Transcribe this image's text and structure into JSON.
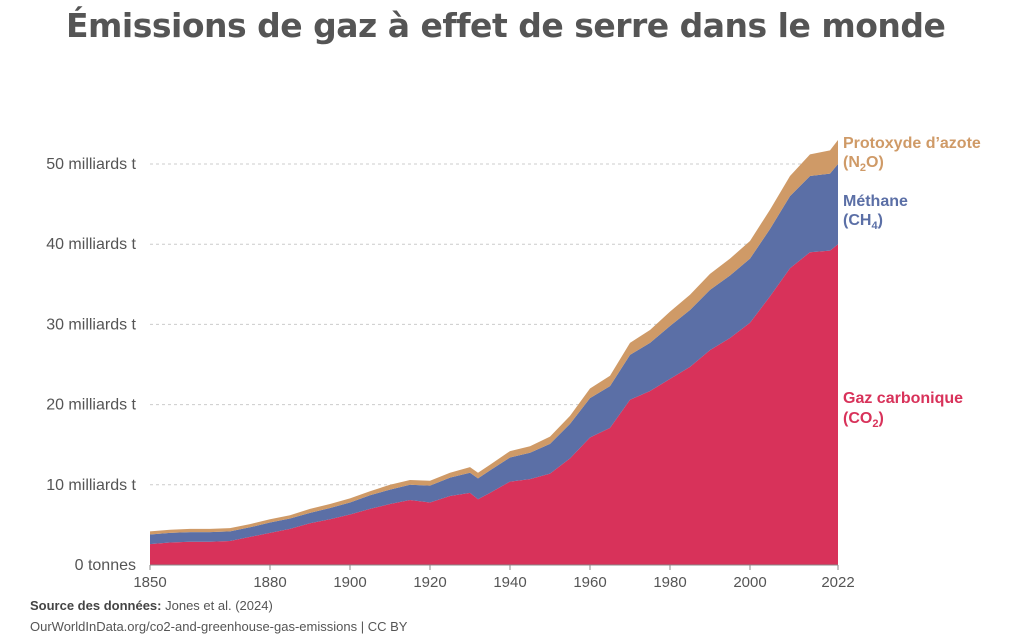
{
  "title": "Émissions de gaz à effet de serre dans le monde",
  "footer": {
    "source_label": "Source des données:",
    "source_value": "Jones et al. (2024)",
    "url_license": "OurWorldInData.org/co2-and-greenhouse-gas-emissions | CC BY"
  },
  "colors": {
    "co2": "#d8325a",
    "ch4": "#5b6fa6",
    "n2o": "#cf9a67"
  },
  "chart_data": {
    "type": "area",
    "stacked": true,
    "ylim": [
      0,
      50000000000
    ],
    "yticks": [
      0,
      10000000000,
      20000000000,
      30000000000,
      40000000000,
      50000000000
    ],
    "ytick_labels": [
      "0 tonnes",
      "10 milliards t",
      "20 milliards t",
      "30 milliards t",
      "40 milliards t",
      "50 milliards t"
    ],
    "xlim": [
      1850,
      2022
    ],
    "xticks": [
      1850,
      1880,
      1900,
      1920,
      1940,
      1960,
      1980,
      2000,
      2022
    ],
    "xtick_labels": [
      "1850",
      "1880",
      "1900",
      "1920",
      "1940",
      "1960",
      "1980",
      "2000",
      "2022"
    ],
    "x": [
      1850,
      1855,
      1860,
      1865,
      1870,
      1875,
      1880,
      1885,
      1890,
      1895,
      1900,
      1905,
      1910,
      1915,
      1920,
      1925,
      1930,
      1932,
      1935,
      1940,
      1945,
      1950,
      1955,
      1960,
      1965,
      1970,
      1975,
      1980,
      1985,
      1990,
      1995,
      2000,
      2005,
      2010,
      2015,
      2020,
      2022
    ],
    "series": [
      {
        "name": "Gaz carbonique",
        "name_parts": [
          "Gaz carbonique",
          "(CO",
          "2",
          ")"
        ],
        "color_key": "co2",
        "values": [
          2.6,
          2.8,
          2.9,
          2.9,
          3.0,
          3.5,
          4.0,
          4.5,
          5.2,
          5.7,
          6.3,
          7.0,
          7.6,
          8.1,
          7.8,
          8.6,
          9.0,
          8.2,
          9.0,
          10.4,
          10.7,
          11.4,
          13.3,
          15.9,
          17.1,
          20.6,
          21.7,
          23.2,
          24.7,
          26.8,
          28.3,
          30.2,
          33.5,
          37.0,
          39.0,
          39.2,
          40.0
        ]
      },
      {
        "name": "Méthane",
        "name_parts": [
          "Méthane",
          "(CH",
          "4",
          ")"
        ],
        "color_key": "ch4",
        "values": [
          1.2,
          1.2,
          1.2,
          1.2,
          1.2,
          1.2,
          1.3,
          1.3,
          1.3,
          1.4,
          1.5,
          1.7,
          1.8,
          1.9,
          2.1,
          2.3,
          2.5,
          2.6,
          2.8,
          3.0,
          3.3,
          3.7,
          4.3,
          4.9,
          5.2,
          5.6,
          6.0,
          6.6,
          7.1,
          7.5,
          7.8,
          8.0,
          8.4,
          9.0,
          9.5,
          9.6,
          10.0
        ]
      },
      {
        "name": "Protoxyde d’azote",
        "name_parts": [
          "Protoxyde d’azote",
          "(N",
          "2",
          "O)"
        ],
        "color_key": "n2o",
        "values": [
          0.4,
          0.4,
          0.4,
          0.4,
          0.4,
          0.4,
          0.4,
          0.4,
          0.5,
          0.5,
          0.5,
          0.5,
          0.6,
          0.6,
          0.6,
          0.6,
          0.7,
          0.7,
          0.7,
          0.8,
          0.8,
          0.9,
          1.0,
          1.2,
          1.3,
          1.5,
          1.6,
          1.8,
          1.9,
          2.0,
          2.1,
          2.2,
          2.4,
          2.5,
          2.7,
          2.9,
          3.0
        ]
      }
    ]
  }
}
